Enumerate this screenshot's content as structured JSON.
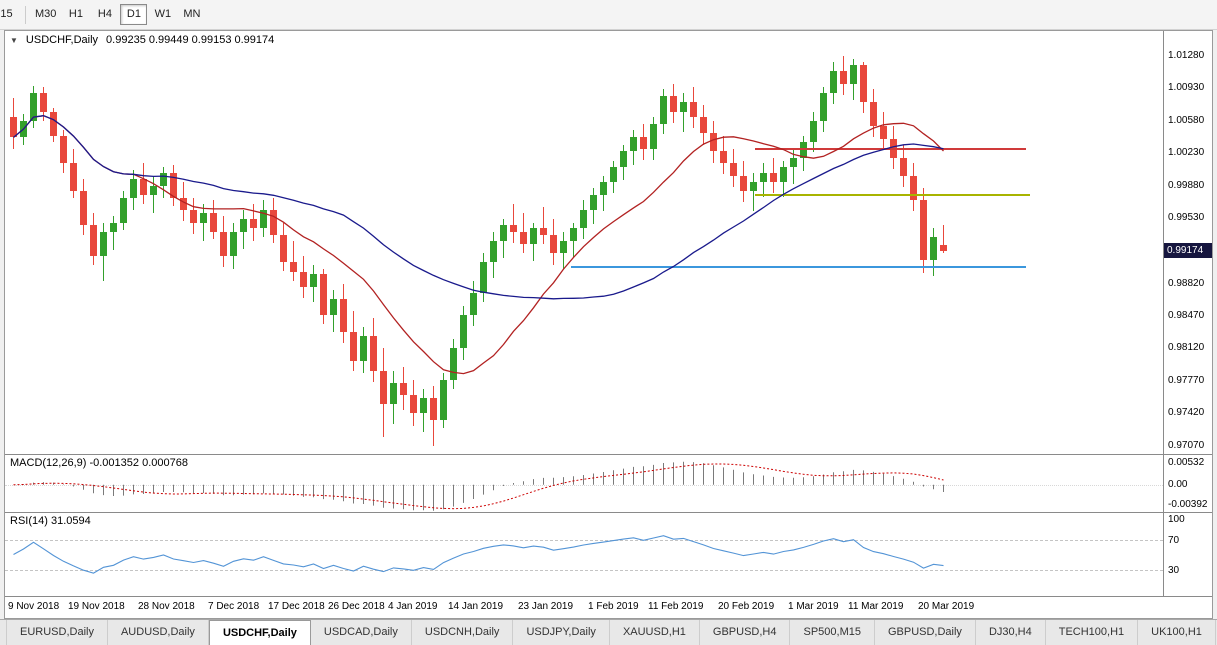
{
  "toolbar": {
    "timeframes": [
      {
        "label": "15",
        "active": false
      },
      {
        "label": "M30",
        "active": false
      },
      {
        "label": "H1",
        "active": false
      },
      {
        "label": "H4",
        "active": false
      },
      {
        "label": "D1",
        "active": true
      },
      {
        "label": "W1",
        "active": false
      },
      {
        "label": "MN",
        "active": false
      }
    ]
  },
  "chart_header": {
    "symbol_label": "USDCHF,Daily",
    "ohlc": "0.99235 0.99449 0.99153 0.99174"
  },
  "price_axis": {
    "labels": [
      "1.01280",
      "1.00930",
      "1.00580",
      "1.00230",
      "0.99880",
      "0.99530",
      "0.98820",
      "0.98470",
      "0.98120",
      "0.97770",
      "0.97420",
      "0.97070"
    ],
    "current_price": "0.99174"
  },
  "macd_panel": {
    "label": "MACD(12,26,9) -0.001352 0.000768",
    "axis_labels": [
      "0.00532",
      "0.00",
      "-0.00392"
    ]
  },
  "rsi_panel": {
    "label": "RSI(14) 31.0594",
    "axis_labels": [
      "100",
      "70",
      "30"
    ]
  },
  "time_axis": {
    "labels": [
      {
        "text": "9 Nov 2018",
        "index": 0
      },
      {
        "text": "19 Nov 2018",
        "index": 6
      },
      {
        "text": "28 Nov 2018",
        "index": 13
      },
      {
        "text": "7 Dec 2018",
        "index": 20
      },
      {
        "text": "17 Dec 2018",
        "index": 26
      },
      {
        "text": "26 Dec 2018",
        "index": 32
      },
      {
        "text": "4 Jan 2019",
        "index": 38
      },
      {
        "text": "14 Jan 2019",
        "index": 44
      },
      {
        "text": "23 Jan 2019",
        "index": 51
      },
      {
        "text": "1 Feb 2019",
        "index": 58
      },
      {
        "text": "11 Feb 2019",
        "index": 64
      },
      {
        "text": "20 Feb 2019",
        "index": 71
      },
      {
        "text": "1 Mar 2019",
        "index": 78
      },
      {
        "text": "11 Mar 2019",
        "index": 84
      },
      {
        "text": "20 Mar 2019",
        "index": 91
      }
    ]
  },
  "tabs": [
    {
      "label": "EURUSD,Daily",
      "active": false
    },
    {
      "label": "AUDUSD,Daily",
      "active": false
    },
    {
      "label": "USDCHF,Daily",
      "active": true
    },
    {
      "label": "USDCAD,Daily",
      "active": false
    },
    {
      "label": "USDCNH,Daily",
      "active": false
    },
    {
      "label": "USDJPY,Daily",
      "active": false
    },
    {
      "label": "XAUUSD,H1",
      "active": false
    },
    {
      "label": "GBPUSD,H4",
      "active": false
    },
    {
      "label": "SP500,M15",
      "active": false
    },
    {
      "label": "GBPUSD,Daily",
      "active": false
    },
    {
      "label": "DJ30,H4",
      "active": false
    },
    {
      "label": "TECH100,H1",
      "active": false
    },
    {
      "label": "UK100,H1",
      "active": false
    }
  ],
  "chart_data": {
    "type": "candlestick",
    "symbol": "USDCHF",
    "timeframe": "Daily",
    "last_bar": {
      "open": 0.99235,
      "high": 0.99449,
      "low": 0.99153,
      "close": 0.99174
    },
    "y_range": {
      "max": 1.0155,
      "min": 0.9698
    },
    "candles": [
      [
        1.0062,
        1.0083,
        1.0028,
        1.004
      ],
      [
        1.004,
        1.0065,
        1.0032,
        1.0058
      ],
      [
        1.0058,
        1.0096,
        1.005,
        1.0088
      ],
      [
        1.0088,
        1.0094,
        1.0058,
        1.0068
      ],
      [
        1.0068,
        1.0072,
        1.0035,
        1.0042
      ],
      [
        1.0042,
        1.0048,
        1.0002,
        1.0012
      ],
      [
        1.0012,
        1.0028,
        0.9975,
        0.9982
      ],
      [
        0.9982,
        0.9995,
        0.9935,
        0.9945
      ],
      [
        0.9945,
        0.9958,
        0.9902,
        0.9912
      ],
      [
        0.9912,
        0.9948,
        0.9885,
        0.9938
      ],
      [
        0.9938,
        0.9955,
        0.9918,
        0.9948
      ],
      [
        0.9948,
        0.9982,
        0.994,
        0.9975
      ],
      [
        0.9975,
        1.0005,
        0.9962,
        0.9995
      ],
      [
        0.9995,
        1.0012,
        0.9968,
        0.9978
      ],
      [
        0.9978,
        0.9998,
        0.9958,
        0.9988
      ],
      [
        0.9988,
        1.0008,
        0.9975,
        1.0002
      ],
      [
        1.0002,
        1.001,
        0.9966,
        0.9975
      ],
      [
        0.9975,
        0.9992,
        0.995,
        0.9962
      ],
      [
        0.9962,
        0.9975,
        0.9936,
        0.9948
      ],
      [
        0.9948,
        0.9968,
        0.9928,
        0.9958
      ],
      [
        0.9958,
        0.9972,
        0.993,
        0.9938
      ],
      [
        0.9938,
        0.9955,
        0.99,
        0.9912
      ],
      [
        0.9912,
        0.9948,
        0.9898,
        0.9938
      ],
      [
        0.9938,
        0.9962,
        0.992,
        0.9952
      ],
      [
        0.9952,
        0.9968,
        0.9928,
        0.9942
      ],
      [
        0.9942,
        0.9972,
        0.9932,
        0.9962
      ],
      [
        0.9962,
        0.9975,
        0.9926,
        0.9935
      ],
      [
        0.9935,
        0.9948,
        0.9896,
        0.9905
      ],
      [
        0.9905,
        0.9928,
        0.9885,
        0.9895
      ],
      [
        0.9895,
        0.9912,
        0.9866,
        0.9878
      ],
      [
        0.9878,
        0.9902,
        0.9862,
        0.9892
      ],
      [
        0.9892,
        0.9898,
        0.9838,
        0.9848
      ],
      [
        0.9848,
        0.9875,
        0.983,
        0.9865
      ],
      [
        0.9865,
        0.9882,
        0.9818,
        0.983
      ],
      [
        0.983,
        0.9852,
        0.9788,
        0.9798
      ],
      [
        0.9798,
        0.9835,
        0.9785,
        0.9825
      ],
      [
        0.9825,
        0.9845,
        0.9776,
        0.9788
      ],
      [
        0.9788,
        0.9812,
        0.9716,
        0.9752
      ],
      [
        0.9752,
        0.9788,
        0.973,
        0.9775
      ],
      [
        0.9775,
        0.9792,
        0.9746,
        0.9762
      ],
      [
        0.9762,
        0.9778,
        0.9728,
        0.9742
      ],
      [
        0.9742,
        0.9768,
        0.9722,
        0.9758
      ],
      [
        0.9758,
        0.9772,
        0.9707,
        0.9735
      ],
      [
        0.9735,
        0.9785,
        0.9726,
        0.9778
      ],
      [
        0.9778,
        0.9822,
        0.9768,
        0.9812
      ],
      [
        0.9812,
        0.9858,
        0.98,
        0.9848
      ],
      [
        0.9848,
        0.9885,
        0.9836,
        0.9872
      ],
      [
        0.9872,
        0.9915,
        0.9862,
        0.9905
      ],
      [
        0.9905,
        0.9938,
        0.9888,
        0.9928
      ],
      [
        0.9928,
        0.9952,
        0.991,
        0.9945
      ],
      [
        0.9945,
        0.9968,
        0.9926,
        0.9938
      ],
      [
        0.9938,
        0.9958,
        0.9915,
        0.9925
      ],
      [
        0.9925,
        0.9948,
        0.9906,
        0.9942
      ],
      [
        0.9942,
        0.9965,
        0.9925,
        0.9935
      ],
      [
        0.9935,
        0.9952,
        0.9902,
        0.9915
      ],
      [
        0.9915,
        0.9938,
        0.9898,
        0.9928
      ],
      [
        0.9928,
        0.9948,
        0.991,
        0.9942
      ],
      [
        0.9942,
        0.9972,
        0.993,
        0.9962
      ],
      [
        0.9962,
        0.9985,
        0.9946,
        0.9978
      ],
      [
        0.9978,
        0.9998,
        0.996,
        0.9992
      ],
      [
        0.9992,
        1.0015,
        0.998,
        1.0008
      ],
      [
        1.0008,
        1.0032,
        0.9994,
        1.0025
      ],
      [
        1.0025,
        1.0048,
        1.001,
        1.004
      ],
      [
        1.004,
        1.0055,
        1.0016,
        1.0028
      ],
      [
        1.0028,
        1.0062,
        1.0016,
        1.0055
      ],
      [
        1.0055,
        1.0092,
        1.0044,
        1.0085
      ],
      [
        1.0085,
        1.0098,
        1.0056,
        1.0068
      ],
      [
        1.0068,
        1.0088,
        1.0046,
        1.0078
      ],
      [
        1.0078,
        1.0095,
        1.005,
        1.0062
      ],
      [
        1.0062,
        1.0075,
        1.0032,
        1.0045
      ],
      [
        1.0045,
        1.0058,
        1.0012,
        1.0025
      ],
      [
        1.0025,
        1.0042,
        1.0,
        1.0012
      ],
      [
        1.0012,
        1.0028,
        0.9986,
        0.9998
      ],
      [
        0.9998,
        1.0015,
        0.997,
        0.9982
      ],
      [
        0.9982,
        1.0002,
        0.996,
        0.9992
      ],
      [
        0.9992,
        1.0012,
        0.9976,
        1.0002
      ],
      [
        1.0002,
        1.0018,
        0.998,
        0.9992
      ],
      [
        0.9992,
        1.0015,
        0.9976,
        1.0008
      ],
      [
        1.0008,
        1.0028,
        0.999,
        1.0018
      ],
      [
        1.0018,
        1.0042,
        1.0004,
        1.0035
      ],
      [
        1.0035,
        1.0068,
        1.0024,
        1.0058
      ],
      [
        1.0058,
        1.0095,
        1.0046,
        1.0088
      ],
      [
        1.0088,
        1.0122,
        1.0076,
        1.0112
      ],
      [
        1.0112,
        1.0128,
        1.0086,
        1.0098
      ],
      [
        1.0098,
        1.0125,
        1.008,
        1.0118
      ],
      [
        1.0118,
        1.0122,
        1.0066,
        1.0078
      ],
      [
        1.0078,
        1.0092,
        1.004,
        1.0052
      ],
      [
        1.0052,
        1.0068,
        1.0026,
        1.0038
      ],
      [
        1.0038,
        1.0052,
        1.0006,
        1.0018
      ],
      [
        1.0018,
        1.0032,
        0.9986,
        0.9998
      ],
      [
        0.9998,
        1.0012,
        0.996,
        0.9972
      ],
      [
        0.9972,
        0.9985,
        0.9893,
        0.9908
      ],
      [
        0.9908,
        0.9942,
        0.989,
        0.9932
      ],
      [
        0.99235,
        0.99449,
        0.99153,
        0.99174
      ]
    ],
    "moving_averages": [
      {
        "period": 13,
        "color": "#b22222"
      },
      {
        "period": 34,
        "color": "#1a1a8c"
      }
    ],
    "hlines": [
      {
        "price": 1.0028,
        "color": "#d03a3a",
        "from": 0.648,
        "to": 0.882
      },
      {
        "price": 0.9978,
        "color": "#a8b400",
        "from": 0.648,
        "to": 0.885
      },
      {
        "price": 0.99,
        "color": "#3b97dd",
        "from": 0.489,
        "to": 0.882
      }
    ],
    "macd": {
      "fast": 12,
      "slow": 26,
      "signal_period": 9,
      "current_macd": -0.001352,
      "current_signal": 0.000768
    },
    "rsi": {
      "period": 14,
      "current": 31.0594,
      "levels": [
        70,
        30
      ]
    },
    "colors": {
      "bull": "#33a02c",
      "bear": "#e8483c",
      "macd_histogram": "#7a7a7a",
      "macd_signal": "#cc0000",
      "rsi_line": "#5394d6",
      "price_badge_bg": "#16163f"
    }
  }
}
